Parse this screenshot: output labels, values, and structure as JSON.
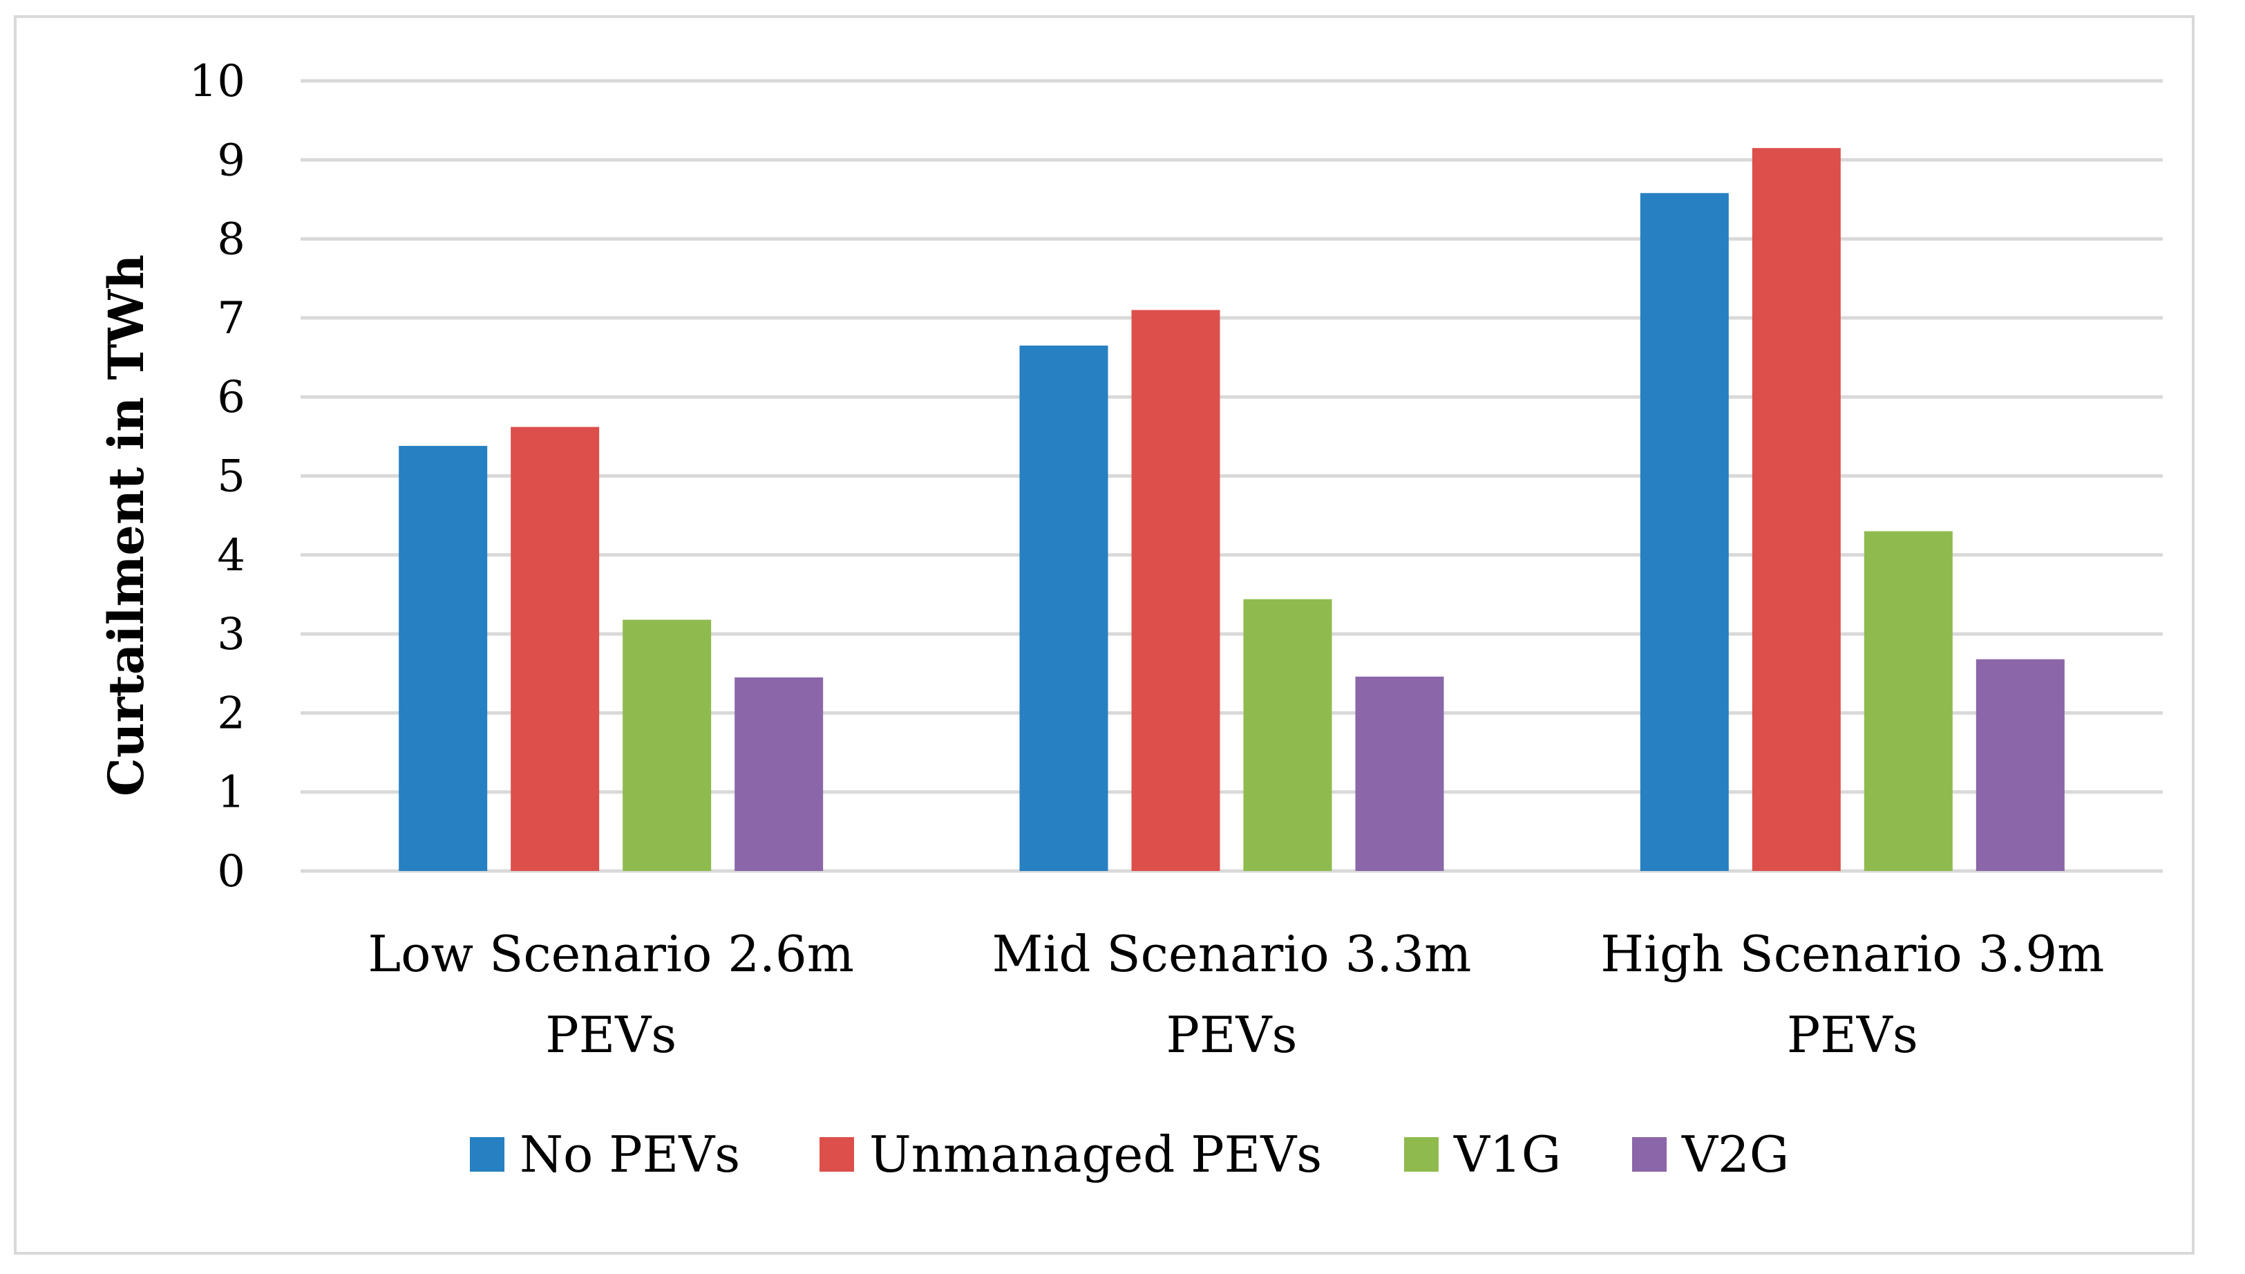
{
  "chart_data": {
    "type": "bar",
    "title": "",
    "xlabel": "",
    "ylabel": "Curtailment in TWh",
    "ylim": [
      0,
      10
    ],
    "yticks": [
      "0",
      "1",
      "2",
      "3",
      "4",
      "5",
      "6",
      "7",
      "8",
      "9",
      "10"
    ],
    "grid": true,
    "legend_position": "bottom",
    "categories": [
      [
        "Low Scenario 2.6m",
        "PEVs"
      ],
      [
        "Mid Scenario 3.3m",
        "PEVs"
      ],
      [
        "High Scenario 3.9m",
        "PEVs"
      ]
    ],
    "series": [
      {
        "name": "No PEVs",
        "color": "#2680c2",
        "values": [
          5.38,
          6.65,
          8.58
        ]
      },
      {
        "name": "Unmanaged PEVs",
        "color": "#dd4f4b",
        "values": [
          5.62,
          7.1,
          9.15
        ]
      },
      {
        "name": "V1G",
        "color": "#8fbb4e",
        "values": [
          3.18,
          3.44,
          4.3
        ]
      },
      {
        "name": "V2G",
        "color": "#8b66a8",
        "values": [
          2.45,
          2.46,
          2.68
        ]
      }
    ]
  }
}
